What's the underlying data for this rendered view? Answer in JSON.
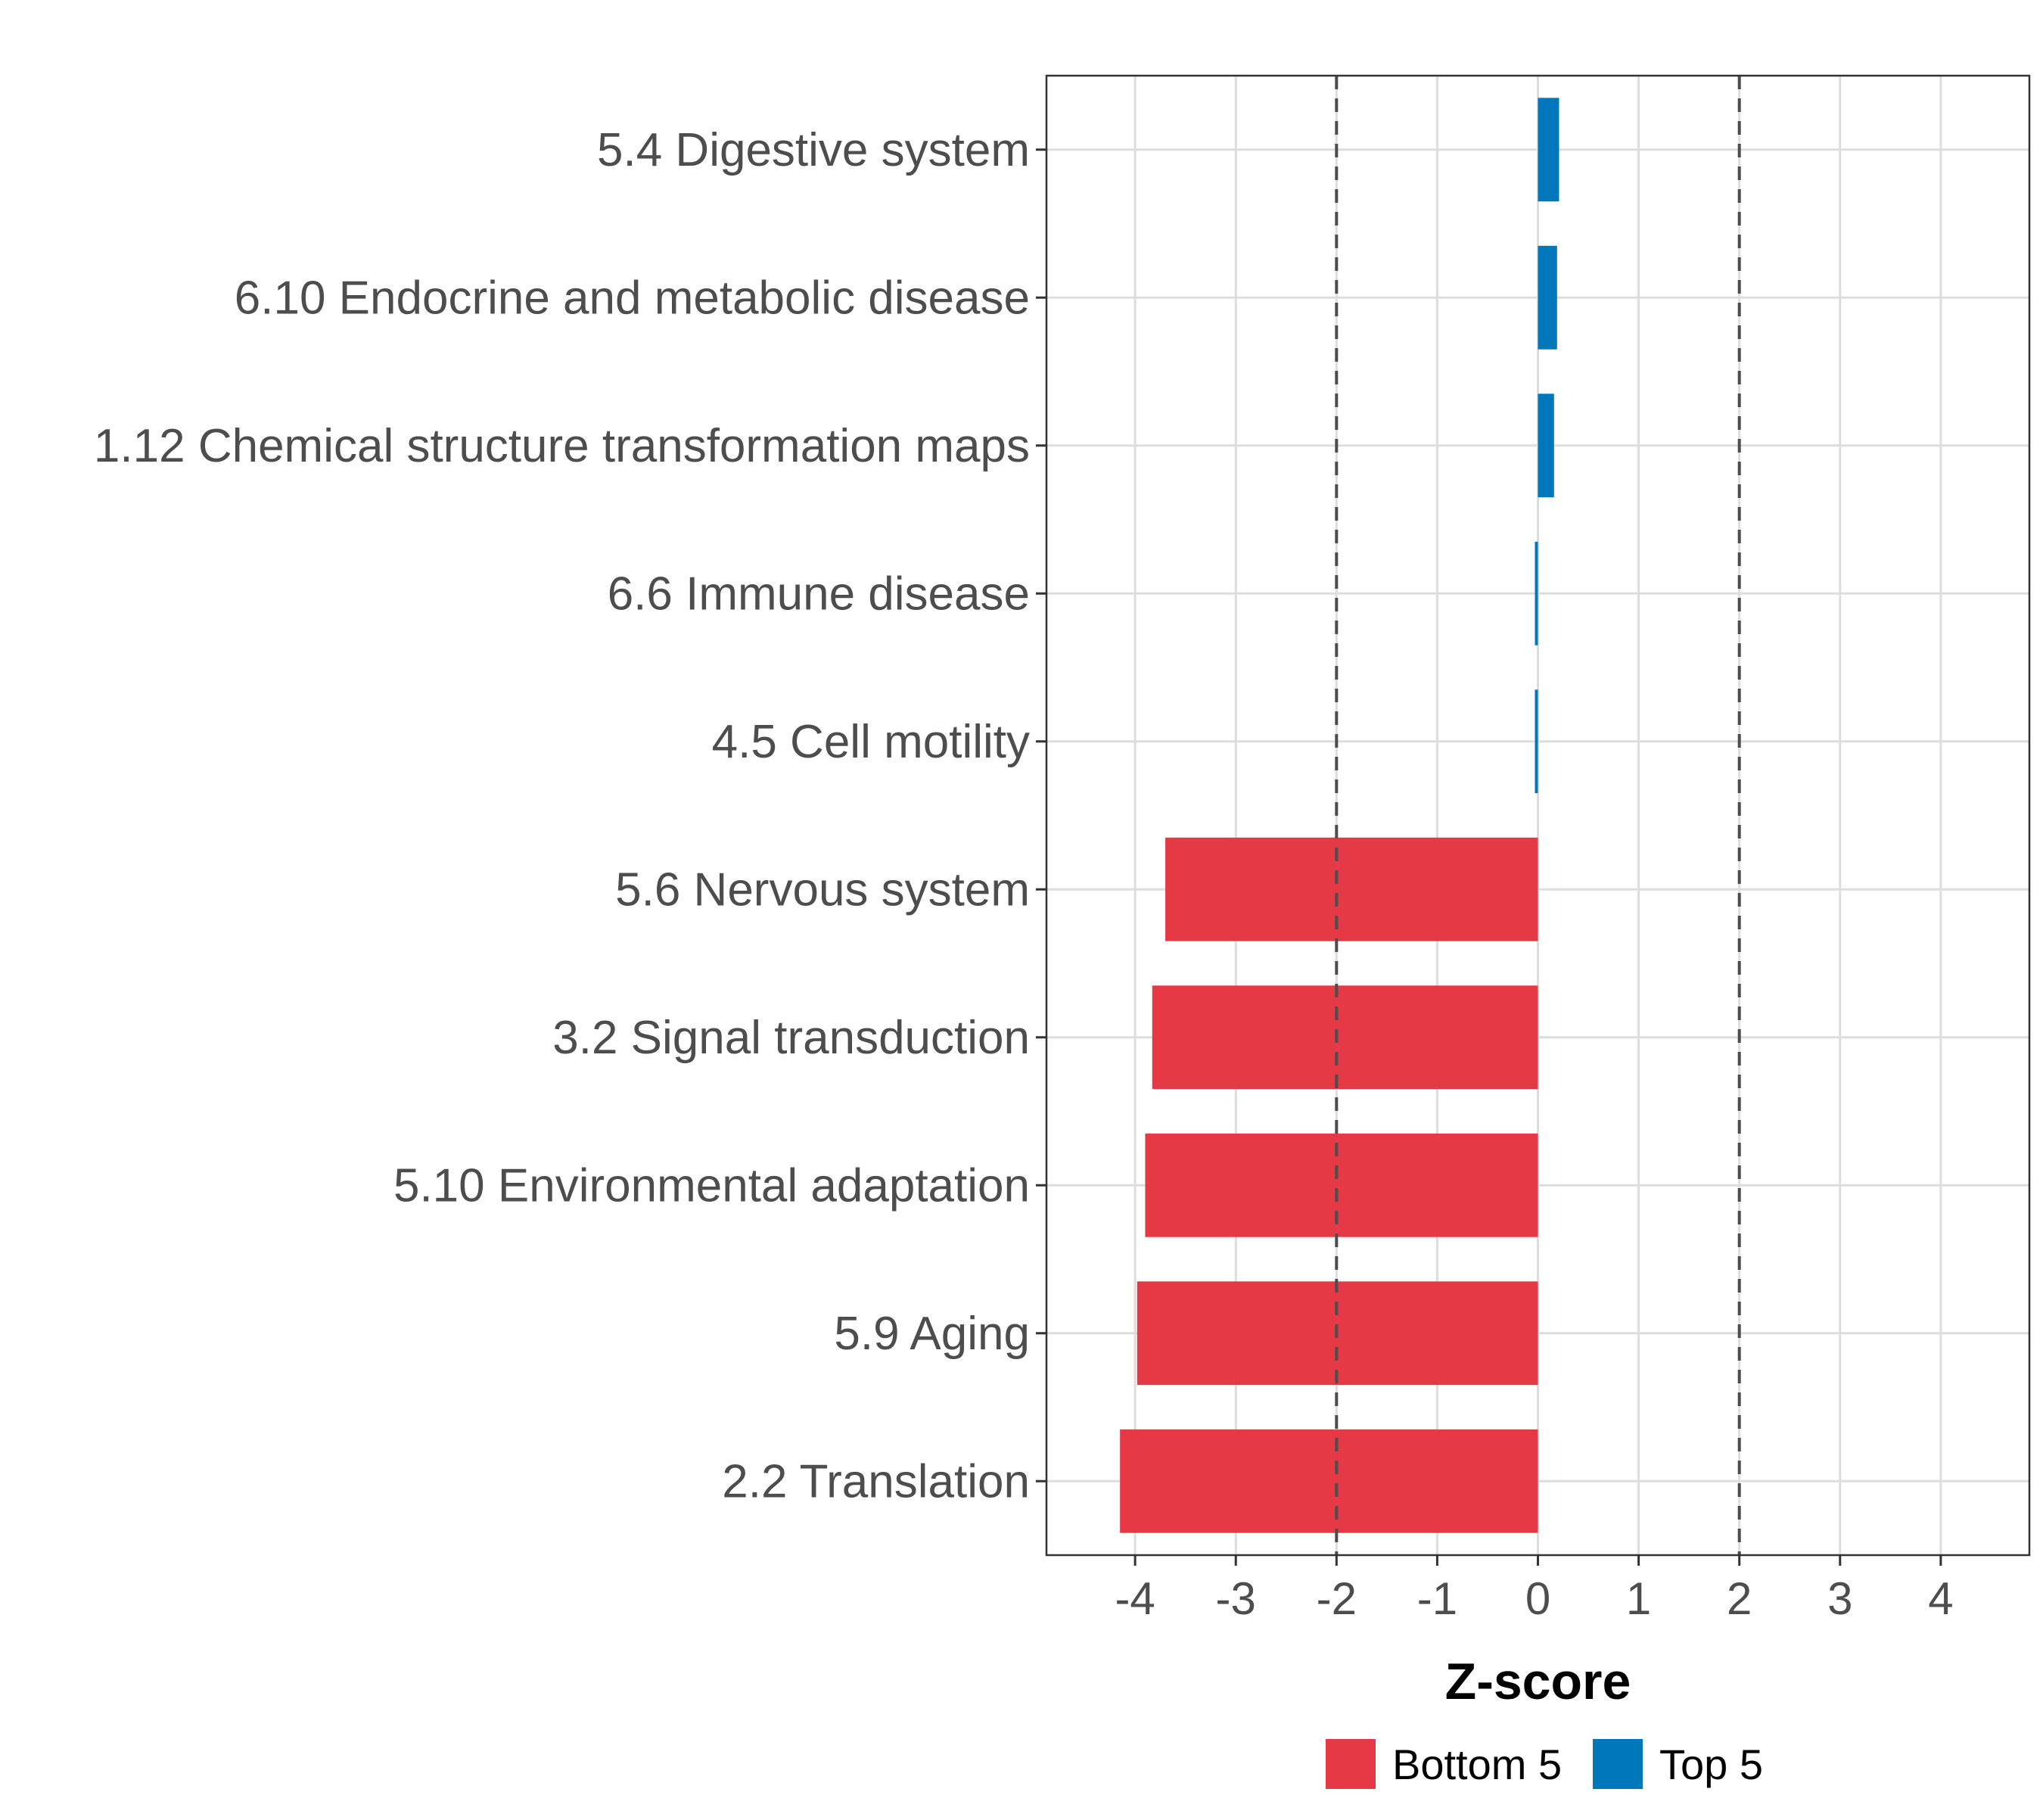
{
  "chart_data": {
    "type": "bar",
    "orientation": "horizontal",
    "categories": [
      "5.4 Digestive system",
      "6.10 Endocrine and metabolic disease",
      "1.12 Chemical structure transformation maps",
      "6.6 Immune disease",
      "4.5 Cell motility",
      "5.6 Nervous system",
      "3.2 Signal transduction",
      "5.10 Environmental adaptation",
      "5.9 Aging",
      "2.2 Translation"
    ],
    "values": [
      0.21,
      0.19,
      0.16,
      -0.03,
      -0.03,
      -3.7,
      -3.83,
      -3.9,
      -3.98,
      -4.15
    ],
    "groups": [
      "Top 5",
      "Top 5",
      "Top 5",
      "Top 5",
      "Top 5",
      "Bottom 5",
      "Bottom 5",
      "Bottom 5",
      "Bottom 5",
      "Bottom 5"
    ],
    "xlabel": "Z-score",
    "ylabel": "",
    "xlim": [
      -4.88,
      4.88
    ],
    "x_ticks": [
      -4,
      -3,
      -2,
      -1,
      0,
      1,
      2,
      3,
      4
    ],
    "x_tick_labels": [
      "-4",
      "-3",
      "-2",
      "-1",
      "0",
      "1",
      "2",
      "3",
      "4"
    ],
    "reference_lines": [
      -2,
      2
    ],
    "grid": true,
    "legend": {
      "placement": "bottom",
      "entries": [
        {
          "label": "Bottom 5",
          "color": "#e63946"
        },
        {
          "label": "Top 5",
          "color": "#0077bb"
        }
      ]
    },
    "colors": {
      "Bottom 5": "#e63946",
      "Top 5": "#0077bb"
    }
  }
}
